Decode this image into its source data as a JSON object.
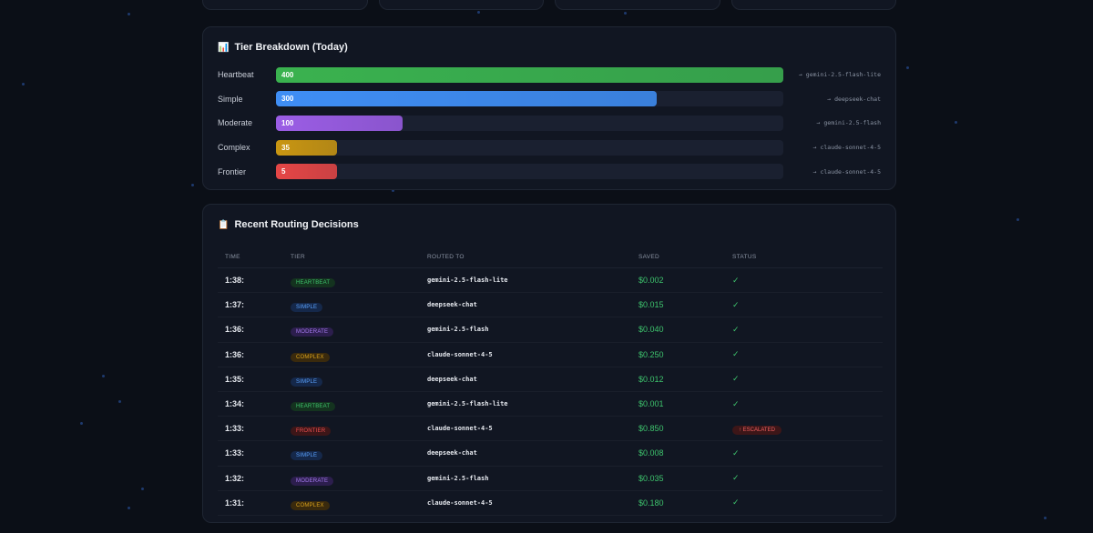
{
  "tier_breakdown": {
    "icon": "bar-chart-icon",
    "title": "Tier Breakdown (Today)",
    "max_count": 400,
    "tiers": [
      {
        "label": "Heartbeat",
        "count": "400",
        "value": 400,
        "model": "→ gemini-2.5-flash-lite",
        "color": "#3ab24f"
      },
      {
        "label": "Simple",
        "count": "300",
        "value": 300,
        "model": "→ deepseek-chat",
        "color": "#3f8ef5"
      },
      {
        "label": "Moderate",
        "count": "100",
        "value": 100,
        "model": "→ gemini-2.5-flash",
        "color": "#9b5de5"
      },
      {
        "label": "Complex",
        "count": "35",
        "value": 35,
        "model": "→ claude-sonnet-4-5",
        "color": "#c99612"
      },
      {
        "label": "Frontier",
        "count": "5",
        "value": 5,
        "model": "→ claude-sonnet-4-5",
        "color": "#e54646"
      }
    ]
  },
  "decisions": {
    "icon": "clipboard-icon",
    "title": "Recent Routing Decisions",
    "columns": {
      "time": "TIME",
      "tier": "TIER",
      "routed_to": "ROUTED TO",
      "saved": "SAVED",
      "status": "STATUS"
    },
    "rows": [
      {
        "time": "1:38:",
        "tier": "HEARTBEAT",
        "tier_class": "b-heartbeat",
        "routed_to": "gemini-2.5-flash-lite",
        "saved": "$0.002",
        "status": "✓",
        "escalated": false
      },
      {
        "time": "1:37:",
        "tier": "SIMPLE",
        "tier_class": "b-simple",
        "routed_to": "deepseek-chat",
        "saved": "$0.015",
        "status": "✓",
        "escalated": false
      },
      {
        "time": "1:36:",
        "tier": "MODERATE",
        "tier_class": "b-moderate",
        "routed_to": "gemini-2.5-flash",
        "saved": "$0.040",
        "status": "✓",
        "escalated": false
      },
      {
        "time": "1:36:",
        "tier": "COMPLEX",
        "tier_class": "b-complex",
        "routed_to": "claude-sonnet-4-5",
        "saved": "$0.250",
        "status": "✓",
        "escalated": false
      },
      {
        "time": "1:35:",
        "tier": "SIMPLE",
        "tier_class": "b-simple",
        "routed_to": "deepseek-chat",
        "saved": "$0.012",
        "status": "✓",
        "escalated": false
      },
      {
        "time": "1:34:",
        "tier": "HEARTBEAT",
        "tier_class": "b-heartbeat",
        "routed_to": "gemini-2.5-flash-lite",
        "saved": "$0.001",
        "status": "✓",
        "escalated": false
      },
      {
        "time": "1:33:",
        "tier": "FRONTIER",
        "tier_class": "b-frontier",
        "routed_to": "claude-sonnet-4-5",
        "saved": "$0.850",
        "status": "↑ ESCALATED",
        "escalated": true
      },
      {
        "time": "1:33:",
        "tier": "SIMPLE",
        "tier_class": "b-simple",
        "routed_to": "deepseek-chat",
        "saved": "$0.008",
        "status": "✓",
        "escalated": false
      },
      {
        "time": "1:32:",
        "tier": "MODERATE",
        "tier_class": "b-moderate",
        "routed_to": "gemini-2.5-flash",
        "saved": "$0.035",
        "status": "✓",
        "escalated": false
      },
      {
        "time": "1:31:",
        "tier": "COMPLEX",
        "tier_class": "b-complex",
        "routed_to": "claude-sonnet-4-5",
        "saved": "$0.180",
        "status": "✓",
        "escalated": false
      }
    ]
  }
}
